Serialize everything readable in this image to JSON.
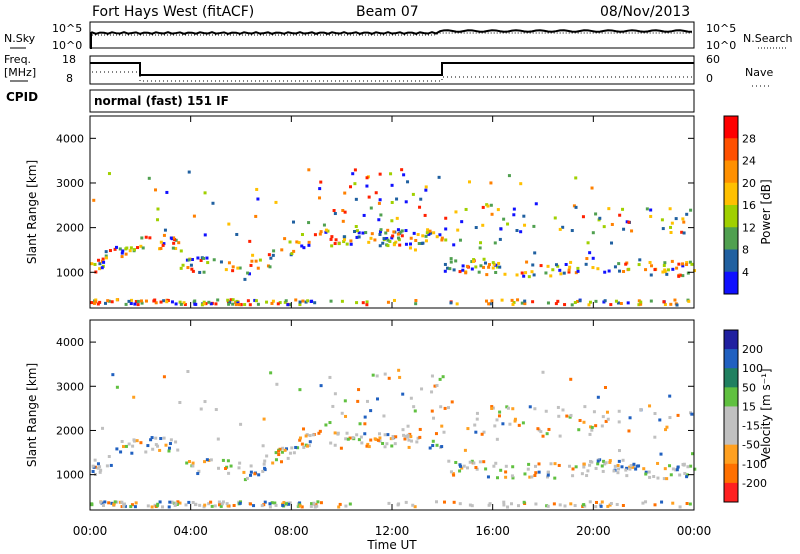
{
  "header": {
    "station": "Fort Hays West (fitACF)",
    "beam": "Beam 07",
    "date": "08/Nov/2013"
  },
  "status_panels": {
    "nsky_label": "N.Sky",
    "nsearch_label": "N.Search",
    "noise_ticks": [
      "10^5",
      "10^0"
    ],
    "freq_label": "Freq.",
    "freq_unit": "[MHz]",
    "freq_ticks": [
      "18",
      "8"
    ],
    "nave_label": "Nave",
    "nave_ticks": [
      "60",
      "0"
    ],
    "cpid_label": "CPID",
    "cpid_value": "normal (fast) 151 IF"
  },
  "chart_data": [
    {
      "type": "heatmap",
      "name": "power",
      "ylabel": "Slant Range [km]",
      "ylim": [
        200,
        4500
      ],
      "yticks": [
        "1000",
        "2000",
        "3000",
        "4000"
      ],
      "colorbar_label": "Power [dB]",
      "colorbar_ticks": [
        "28",
        "24",
        "20",
        "16",
        "12",
        "8",
        "4"
      ],
      "colorbar_colors": [
        "#ff0000",
        "#ff5000",
        "#ff9000",
        "#ffc000",
        "#a0d000",
        "#50a050",
        "#2060a0",
        "#1010ff"
      ],
      "xticks": [
        "00:00",
        "04:00",
        "08:00",
        "12:00",
        "16:00",
        "20:00",
        "00:00"
      ],
      "xlabel": ""
    },
    {
      "type": "heatmap",
      "name": "velocity",
      "ylabel": "Slant Range [km]",
      "ylim": [
        200,
        4500
      ],
      "yticks": [
        "1000",
        "2000",
        "3000",
        "4000"
      ],
      "colorbar_label": "Velocity [m s⁻¹]",
      "colorbar_ticks": [
        "200",
        "100",
        "50",
        "15",
        "-15",
        "-50",
        "-100",
        "-200"
      ],
      "colorbar_colors": [
        "#2020a0",
        "#2060c0",
        "#208060",
        "#60c040",
        "#c0c0c0",
        "#c0c0c0",
        "#ffa020",
        "#ff7000",
        "#ff2020"
      ],
      "xticks": [
        "00:00",
        "04:00",
        "08:00",
        "12:00",
        "16:00",
        "20:00",
        "00:00"
      ],
      "xlabel": "Time UT"
    }
  ]
}
